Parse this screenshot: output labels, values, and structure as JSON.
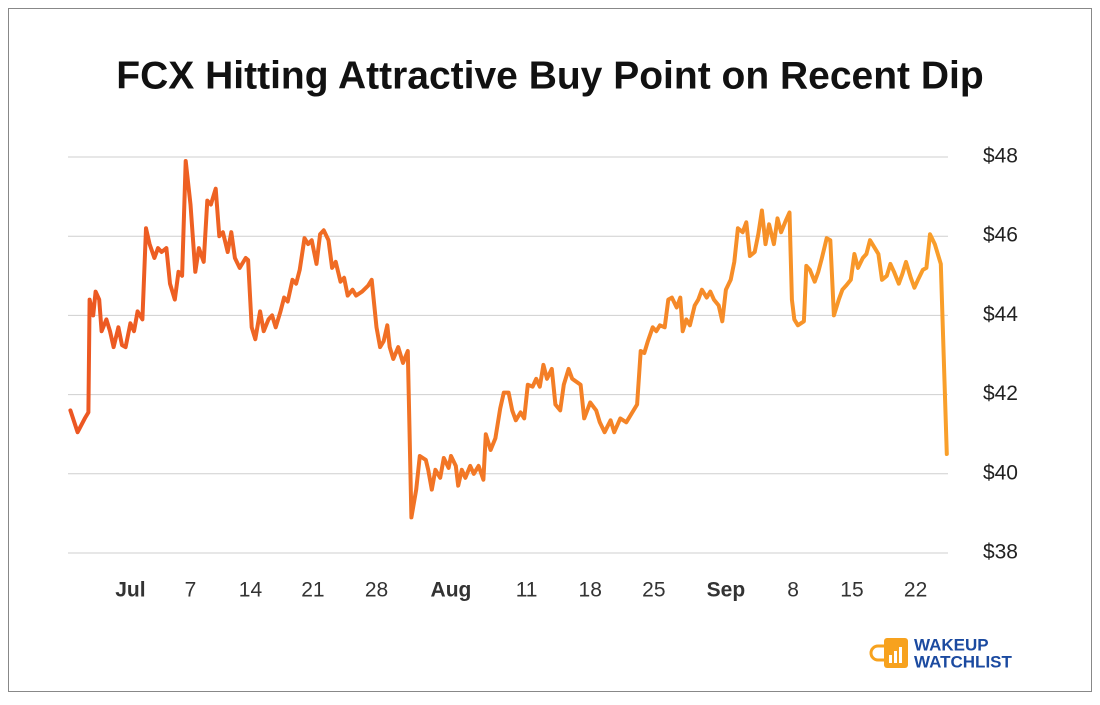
{
  "chart_data": {
    "type": "line",
    "title": "FCX Hitting Attractive Buy Point on Recent Dip",
    "x": [
      0.2,
      0.8,
      1.4,
      1.7,
      1.8,
      2.1,
      2.3,
      2.6,
      2.8,
      3.2,
      3.5,
      3.8,
      4.2,
      4.5,
      4.8,
      5.2,
      5.5,
      5.8,
      6.2,
      6.5,
      6.8,
      7.2,
      7.5,
      7.8,
      8.2,
      8.5,
      8.9,
      9.2,
      9.5,
      9.8,
      10.2,
      10.6,
      10.9,
      11.3,
      11.6,
      11.9,
      12.3,
      12.6,
      12.9,
      13.3,
      13.6,
      13.9,
      14.3,
      14.8,
      15.0,
      15.3,
      15.6,
      16.0,
      16.3,
      16.7,
      17.0,
      17.3,
      17.7,
      18.0,
      18.3,
      18.7,
      19.0,
      19.3,
      19.7,
      20.0,
      20.3,
      20.7,
      21.0,
      21.3,
      21.7,
      22.0,
      22.3,
      22.7,
      23.0,
      23.3,
      23.7,
      24.0,
      24.5,
      25.0,
      25.3,
      25.7,
      26.0,
      26.3,
      26.6,
      26.8,
      27.1,
      27.5,
      27.9,
      28.3,
      28.6,
      29.0,
      29.3,
      29.8,
      30.0,
      30.3,
      30.6,
      31.0,
      31.3,
      31.7,
      31.9,
      32.3,
      32.5,
      32.8,
      33.1,
      33.5,
      33.8,
      34.2,
      34.6,
      34.8,
      35.2,
      35.6,
      36.0,
      36.3,
      36.7,
      37.0,
      37.3,
      37.7,
      38.0,
      38.3,
      38.7,
      39.0,
      39.3,
      39.6,
      39.9,
      40.3,
      40.6,
      41.0,
      41.3,
      41.7,
      42.0,
      42.7,
      43.0,
      43.5,
      44.0,
      44.3,
      44.7,
      45.2,
      45.5,
      46.0,
      46.5,
      47.0,
      47.4,
      47.7,
      48.0,
      48.3,
      48.7,
      49.0,
      49.3,
      49.7,
      50.0,
      50.3,
      50.7,
      51.0,
      51.2,
      51.5,
      51.8,
      52.2,
      52.5,
      52.8,
      53.2,
      53.5,
      53.8,
      54.2,
      54.5,
      54.8,
      55.2,
      55.5,
      55.8,
      56.2,
      56.5,
      56.8,
      57.2,
      57.5,
      57.8,
      58.1,
      58.4,
      58.8,
      59.1,
      59.4,
      59.8,
      60.1,
      60.3,
      60.5,
      60.8,
      61.3,
      61.5,
      61.8,
      62.2,
      62.5,
      62.8,
      63.2,
      63.5,
      63.8,
      64.2,
      64.5,
      64.8,
      65.2,
      65.5,
      65.8,
      66.2,
      66.5,
      66.8,
      67.2,
      67.5,
      67.8,
      68.2,
      68.5,
      68.8,
      69.2,
      69.5,
      69.8,
      70.2,
      70.5,
      70.8,
      71.2,
      71.5,
      71.8,
      72.2,
      72.7,
      73.2
    ],
    "values": [
      41.6,
      41.05,
      41.4,
      41.55,
      44.4,
      44.0,
      44.6,
      44.4,
      43.6,
      43.9,
      43.6,
      43.2,
      43.7,
      43.25,
      43.2,
      43.8,
      43.6,
      44.1,
      43.9,
      46.2,
      45.8,
      45.45,
      45.7,
      45.6,
      45.7,
      44.8,
      44.4,
      45.1,
      45.0,
      47.9,
      46.8,
      45.1,
      45.7,
      45.35,
      46.9,
      46.8,
      47.2,
      46.0,
      46.1,
      45.6,
      46.1,
      45.45,
      45.2,
      45.45,
      45.4,
      43.7,
      43.4,
      44.1,
      43.6,
      43.9,
      44.0,
      43.7,
      44.1,
      44.45,
      44.35,
      44.9,
      44.8,
      45.15,
      45.95,
      45.8,
      45.9,
      45.3,
      46.05,
      46.15,
      45.9,
      45.2,
      45.35,
      44.85,
      44.95,
      44.5,
      44.65,
      44.5,
      44.6,
      44.75,
      44.9,
      43.7,
      43.2,
      43.35,
      43.75,
      43.2,
      42.9,
      43.2,
      42.8,
      43.1,
      38.9,
      39.6,
      40.45,
      40.35,
      40.1,
      39.6,
      40.1,
      39.9,
      40.4,
      40.15,
      40.45,
      40.2,
      39.7,
      40.1,
      39.9,
      40.2,
      40.0,
      40.2,
      39.85,
      41.0,
      40.6,
      40.9,
      41.65,
      42.05,
      42.05,
      41.6,
      41.35,
      41.55,
      41.4,
      42.25,
      42.2,
      42.4,
      42.2,
      42.75,
      42.4,
      42.65,
      41.75,
      41.6,
      42.25,
      42.65,
      42.4,
      42.25,
      41.4,
      41.8,
      41.6,
      41.3,
      41.05,
      41.35,
      41.05,
      41.4,
      41.3,
      41.55,
      41.75,
      43.1,
      43.05,
      43.35,
      43.7,
      43.6,
      43.75,
      43.7,
      44.4,
      44.45,
      44.2,
      44.45,
      43.6,
      43.9,
      43.75,
      44.25,
      44.4,
      44.65,
      44.45,
      44.6,
      44.4,
      44.25,
      43.85,
      44.65,
      44.9,
      45.35,
      46.2,
      46.1,
      46.35,
      45.5,
      45.6,
      46.05,
      46.65,
      45.8,
      46.3,
      45.8,
      46.45,
      46.1,
      46.4,
      46.6,
      44.4,
      43.9,
      43.75,
      43.85,
      45.25,
      45.15,
      44.85,
      45.1,
      45.45,
      45.95,
      45.9,
      44.0,
      44.4,
      44.65,
      44.75,
      44.9,
      45.55,
      45.2,
      45.45,
      45.55,
      45.9,
      45.7,
      45.55,
      44.9,
      45.0,
      45.3,
      45.1,
      44.8,
      45.05,
      45.35,
      44.95,
      44.7,
      44.9,
      45.15,
      45.2,
      46.05,
      45.8,
      45.3,
      40.5
    ],
    "gradient": [
      "#ec5622",
      "#f99f2a"
    ],
    "xlim": [
      0,
      73.3
    ],
    "xticks": [
      {
        "value": 5.2,
        "label": "Jul"
      },
      {
        "value": 10.2,
        "label": "7"
      },
      {
        "value": 15.2,
        "label": "14"
      },
      {
        "value": 20.4,
        "label": "21"
      },
      {
        "value": 25.7,
        "label": "28"
      },
      {
        "value": 31.9,
        "label": "Aug"
      },
      {
        "value": 38.2,
        "label": "11"
      },
      {
        "value": 43.5,
        "label": "18"
      },
      {
        "value": 48.8,
        "label": "25"
      },
      {
        "value": 54.8,
        "label": "Sep"
      },
      {
        "value": 60.4,
        "label": "8"
      },
      {
        "value": 65.3,
        "label": "15"
      },
      {
        "value": 70.6,
        "label": "22"
      }
    ],
    "ylim": [
      38,
      48
    ],
    "yticks": [
      {
        "value": 38,
        "label": "$38"
      },
      {
        "value": 40,
        "label": "$40"
      },
      {
        "value": 42,
        "label": "$42"
      },
      {
        "value": 44,
        "label": "$44"
      },
      {
        "value": 46,
        "label": "$46"
      },
      {
        "value": 48,
        "label": "$48"
      }
    ],
    "grid": true
  },
  "logo": {
    "line1": "WAKEUP",
    "line2": "WATCHLIST"
  }
}
